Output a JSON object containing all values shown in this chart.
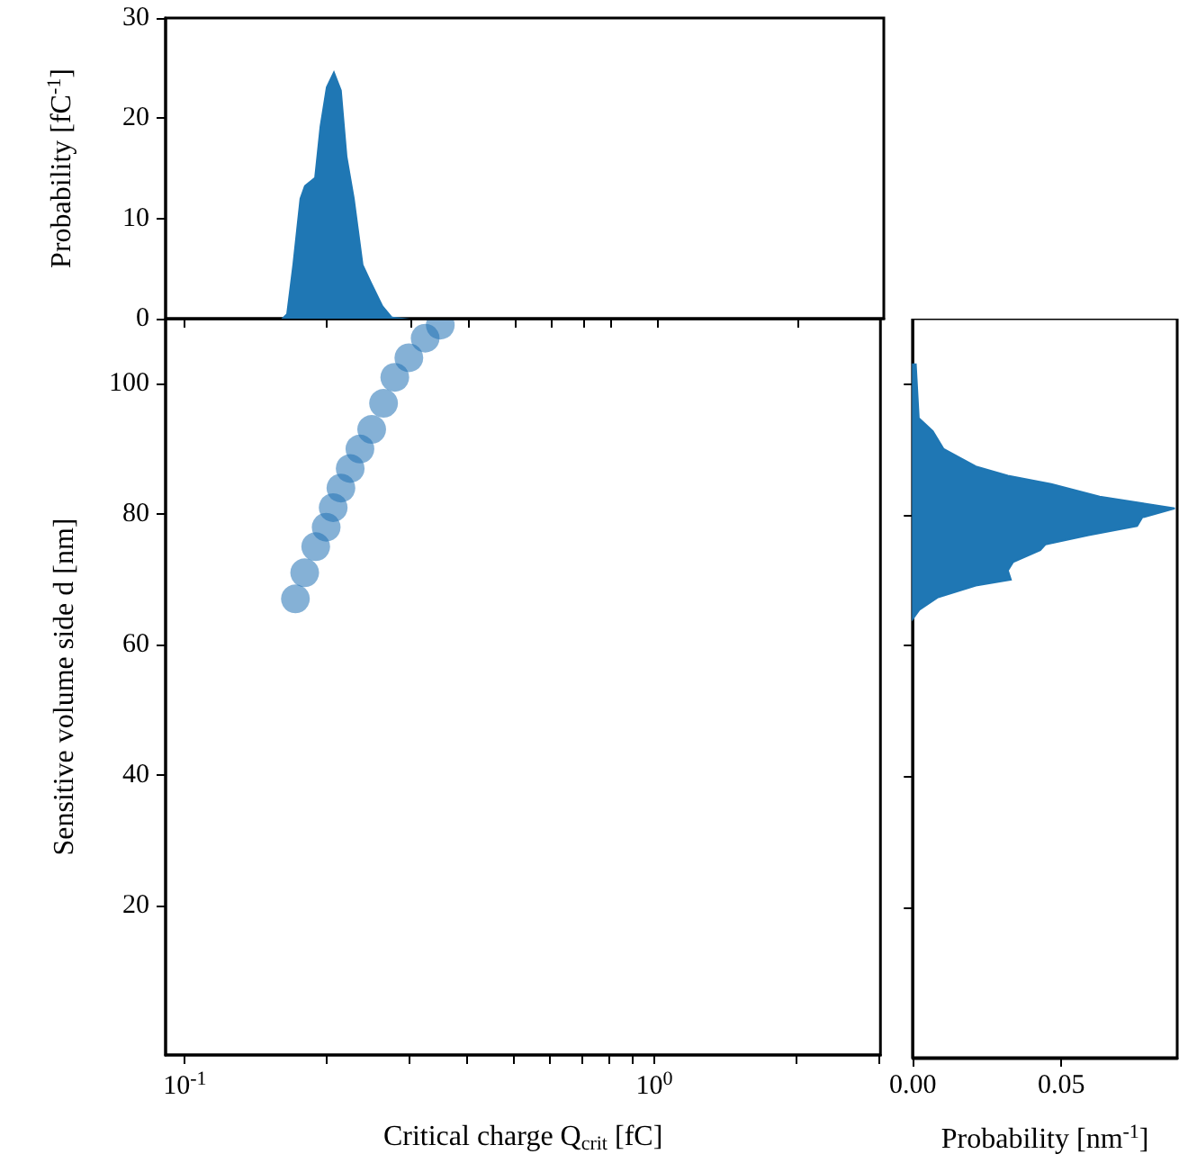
{
  "chart_data": [
    {
      "type": "area",
      "ylabel": "Probability [fC$^{-1}$]",
      "log": "x",
      "tick_labels": "y",
      "color": "#1f77b4",
      "xlim": [
        0.091,
        3.03
      ],
      "xticks": [
        {
          "value": 0.1,
          "label": null
        },
        {
          "value": 0.2,
          "label": null
        },
        {
          "value": 0.3,
          "label": null
        },
        {
          "value": 0.4,
          "label": null
        },
        {
          "value": 0.5,
          "label": null
        },
        {
          "value": 0.6,
          "label": null
        },
        {
          "value": 0.7,
          "label": null
        },
        {
          "value": 0.8,
          "label": null
        },
        {
          "value": 1,
          "label": null
        },
        {
          "value": 2,
          "label": null
        }
      ],
      "ylim": [
        0,
        30
      ],
      "yticks": [
        0,
        10,
        20,
        30
      ],
      "x": [
        0.091,
        0.16,
        0.164,
        0.169,
        0.175,
        0.179,
        0.188,
        0.193,
        0.199,
        0.207,
        0.215,
        0.221,
        0.229,
        0.239,
        0.249,
        0.263,
        0.275,
        0.3
      ],
      "values": [
        0,
        0,
        0.5,
        5.4,
        12,
        13.3,
        14.1,
        19.2,
        23.1,
        24.8,
        22.8,
        16.2,
        12,
        5.4,
        3.6,
        1.3,
        0.2,
        0
      ]
    },
    {
      "type": "scatter",
      "xlabel": "Critical charge Q$_{crit}$ [fC]",
      "ylabel": "Sensitive volume side d [nm]",
      "log": "x",
      "marker": "circle",
      "color": "#2171b5",
      "xlim": [
        0.091,
        3.03
      ],
      "xticks": [
        {
          "value": 0.1,
          "label": "10$^{-1}$"
        },
        {
          "value": 0.2,
          "label": null
        },
        {
          "value": 0.3,
          "label": null
        },
        {
          "value": 0.4,
          "label": null
        },
        {
          "value": 0.5,
          "label": null
        },
        {
          "value": 0.6,
          "label": null
        },
        {
          "value": 0.7,
          "label": null
        },
        {
          "value": 0.8,
          "label": null
        },
        {
          "value": 0.9,
          "label": null
        },
        {
          "value": 1,
          "label": "10$^{0}$"
        },
        {
          "value": 2,
          "label": null
        },
        {
          "value": 3,
          "label": null
        }
      ],
      "ylim": [
        -3,
        110
      ],
      "yticks": [
        20,
        40,
        60,
        80,
        100
      ],
      "x": [
        0.172,
        0.18,
        0.19,
        0.2,
        0.207,
        0.215,
        0.225,
        0.236,
        0.25,
        0.265,
        0.28,
        0.3,
        0.325,
        0.35
      ],
      "values": [
        67,
        71,
        75,
        78,
        81,
        84,
        87,
        90,
        93,
        97,
        101,
        104,
        107,
        109
      ]
    },
    {
      "type": "area",
      "orientation": "horizontal",
      "xlabel": "Probability [nm$^{-1}$]",
      "tick_labels": "x",
      "color": "#1f77b4",
      "xlim": [
        0,
        0.089
      ],
      "xticks": [
        {
          "value": 0,
          "label": "0.00"
        },
        {
          "value": 0.05,
          "label": "0.05"
        }
      ],
      "ylim": [
        -3,
        110
      ],
      "yticks": [
        {
          "value": 20,
          "label": null
        },
        {
          "value": 40,
          "label": null
        },
        {
          "value": 60,
          "label": null
        },
        {
          "value": 80,
          "label": null
        },
        {
          "value": 100,
          "label": null
        }
      ],
      "x": [
        64.1,
        65.5,
        67.4,
        69.2,
        70.1,
        71.5,
        72.8,
        74.6,
        75.5,
        76.9,
        78.3,
        79.6,
        81,
        82.8,
        84.7,
        86,
        87.4,
        90.1,
        92.8,
        94.8,
        103
      ],
      "values": [
        0,
        0.0022,
        0.0085,
        0.0212,
        0.033,
        0.032,
        0.0338,
        0.0429,
        0.0447,
        0.0592,
        0.0755,
        0.0772,
        0.0882,
        0.0629,
        0.0466,
        0.032,
        0.0212,
        0.0103,
        0.0067,
        0.002,
        0.001
      ]
    }
  ]
}
